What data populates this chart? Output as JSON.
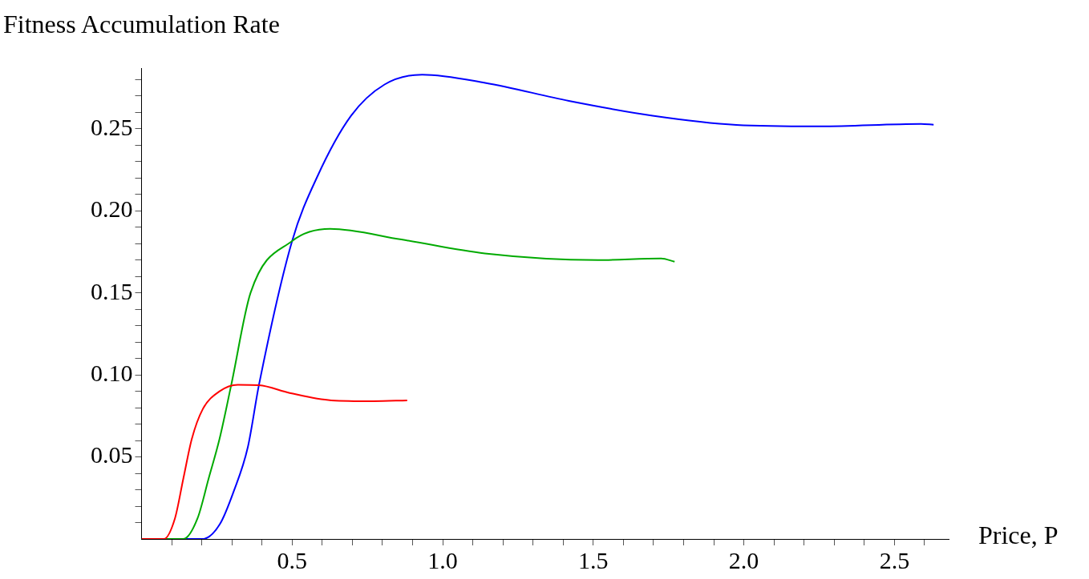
{
  "chart_data": {
    "type": "line",
    "xlabel": "Price, P",
    "ylabel": "Fitness Accumulation Rate",
    "xlim": [
      0,
      2.68
    ],
    "ylim": [
      0,
      0.287
    ],
    "xticks": [
      {
        "value": 0.1,
        "label": null
      },
      {
        "value": 0.2,
        "label": null
      },
      {
        "value": 0.3,
        "label": null
      },
      {
        "value": 0.4,
        "label": null
      },
      0.5,
      {
        "value": 0.6,
        "label": null
      },
      {
        "value": 0.7,
        "label": null
      },
      {
        "value": 0.8,
        "label": null
      },
      {
        "value": 0.9,
        "label": null
      },
      {
        "value": 1.0,
        "label": "1.0"
      },
      {
        "value": 1.1,
        "label": null
      },
      {
        "value": 1.2,
        "label": null
      },
      {
        "value": 1.3,
        "label": null
      },
      {
        "value": 1.4,
        "label": null
      },
      1.5,
      {
        "value": 1.6,
        "label": null
      },
      {
        "value": 1.7,
        "label": null
      },
      {
        "value": 1.8,
        "label": null
      },
      {
        "value": 1.9,
        "label": null
      },
      {
        "value": 2.0,
        "label": "2.0"
      },
      {
        "value": 2.1,
        "label": null
      },
      {
        "value": 2.2,
        "label": null
      },
      {
        "value": 2.3,
        "label": null
      },
      {
        "value": 2.4,
        "label": null
      },
      2.5,
      {
        "value": 2.6,
        "label": null
      }
    ],
    "yticks": [
      {
        "value": 0.01,
        "label": null
      },
      {
        "value": 0.02,
        "label": null
      },
      {
        "value": 0.03,
        "label": null
      },
      {
        "value": 0.04,
        "label": null
      },
      {
        "value": 0.05,
        "label": "0.05"
      },
      {
        "value": 0.06,
        "label": null
      },
      {
        "value": 0.07,
        "label": null
      },
      {
        "value": 0.08,
        "label": null
      },
      {
        "value": 0.09,
        "label": null
      },
      {
        "value": 0.1,
        "label": "0.10"
      },
      {
        "value": 0.11,
        "label": null
      },
      {
        "value": 0.12,
        "label": null
      },
      {
        "value": 0.13,
        "label": null
      },
      {
        "value": 0.14,
        "label": null
      },
      0.15,
      {
        "value": 0.16,
        "label": null
      },
      {
        "value": 0.17,
        "label": null
      },
      {
        "value": 0.18,
        "label": null
      },
      {
        "value": 0.19,
        "label": null
      },
      {
        "value": 0.2,
        "label": "0.20"
      },
      {
        "value": 0.21,
        "label": null
      },
      {
        "value": 0.22,
        "label": null
      },
      {
        "value": 0.23,
        "label": null
      },
      {
        "value": 0.24,
        "label": null
      },
      0.25,
      {
        "value": 0.26,
        "label": null
      },
      {
        "value": 0.27,
        "label": null
      },
      {
        "value": 0.28,
        "label": null
      }
    ],
    "grid": false,
    "legend": false,
    "series": [
      {
        "color": "#ff0000",
        "x": [
          0,
          0.074,
          0.111,
          0.139,
          0.167,
          0.203,
          0.259,
          0.32,
          0.39,
          0.492,
          0.63,
          0.77,
          0.882
        ],
        "values": [
          0,
          0,
          0.0126,
          0.037,
          0.061,
          0.079,
          0.09,
          0.094,
          0.0937,
          0.089,
          0.0845,
          0.084,
          0.0845
        ]
      },
      {
        "color": "#00aa00",
        "x": [
          0,
          0.139,
          0.186,
          0.223,
          0.259,
          0.298,
          0.362,
          0.5,
          0.626,
          0.863,
          1.14,
          1.516,
          1.725,
          1.77
        ],
        "values": [
          0,
          0,
          0.0126,
          0.037,
          0.061,
          0.094,
          0.15,
          0.1816,
          0.189,
          0.1825,
          0.174,
          0.17,
          0.171,
          0.169
        ]
      },
      {
        "color": "#0000ff",
        "x": [
          0,
          0.203,
          0.26,
          0.306,
          0.353,
          0.39,
          0.5,
          0.584,
          0.696,
          0.807,
          0.932,
          1.141,
          1.419,
          1.697,
          1.975,
          2.254,
          2.588,
          2.63
        ],
        "values": [
          0,
          0,
          0.009,
          0.029,
          0.056,
          0.094,
          0.1816,
          0.221,
          0.258,
          0.277,
          0.283,
          0.278,
          0.267,
          0.258,
          0.2524,
          0.2515,
          0.253,
          0.2525
        ]
      }
    ]
  }
}
